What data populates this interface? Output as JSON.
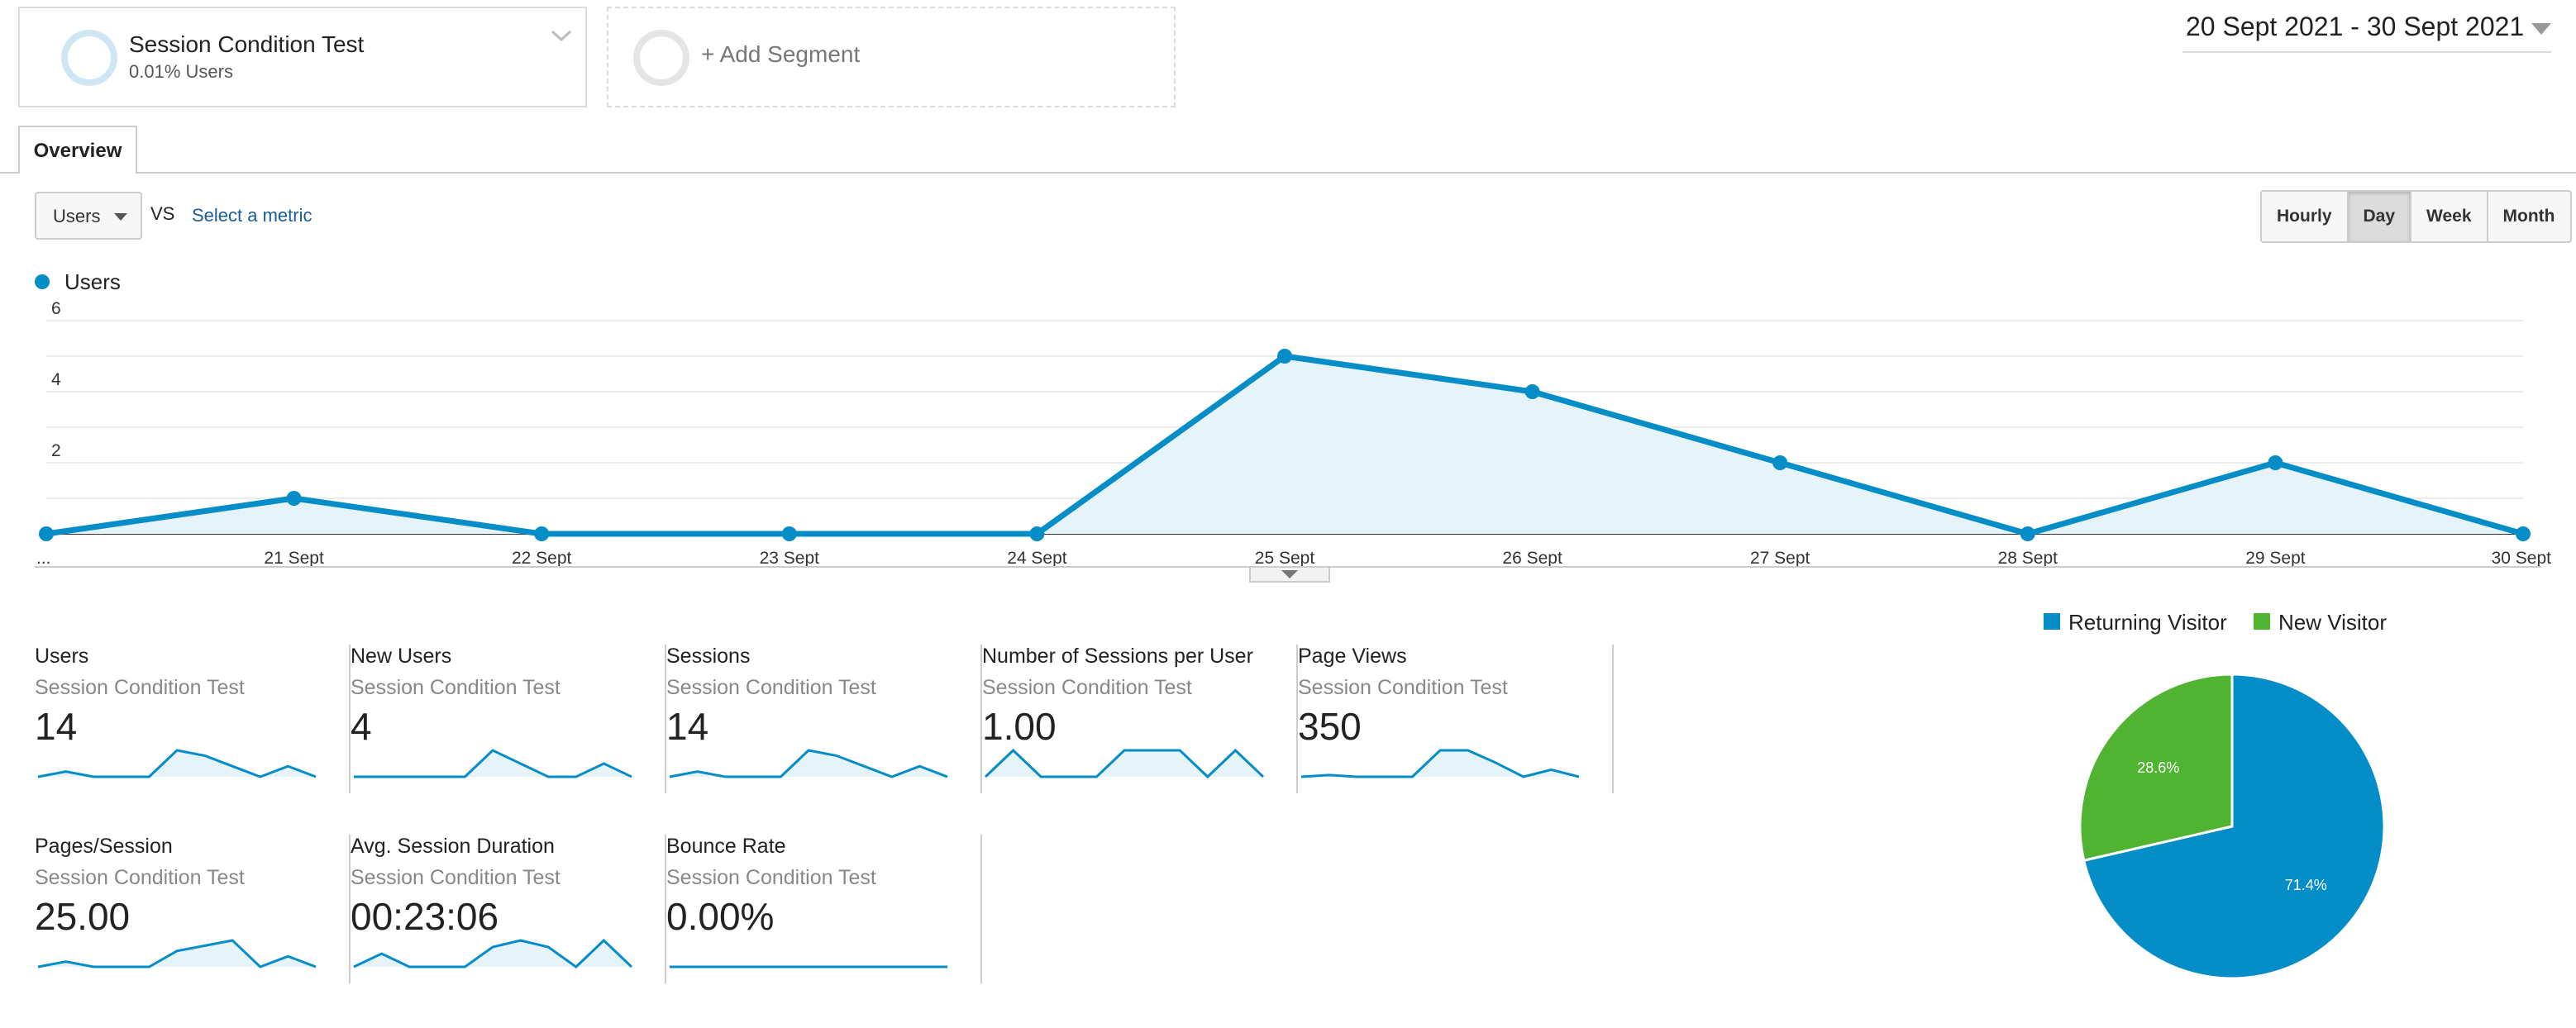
{
  "segment": {
    "name": "Session Condition Test",
    "share": "0.01% Users"
  },
  "add_segment_label": "+ Add Segment",
  "date_range": "20 Sept 2021 - 30 Sept 2021",
  "tabs": [
    {
      "label": "Overview"
    }
  ],
  "metric_selector": {
    "value": "Users",
    "vs": "VS",
    "secondary": "Select a metric"
  },
  "granularity": {
    "options": [
      "Hourly",
      "Day",
      "Week",
      "Month"
    ],
    "active": "Day"
  },
  "colors": {
    "series": "#058dc7",
    "new_visitor": "#50b432",
    "area_fill": "#e6f3f9"
  },
  "chart_data": {
    "type": "line",
    "legend": [
      "Users"
    ],
    "x": [
      "...",
      "21 Sept",
      "22 Sept",
      "23 Sept",
      "24 Sept",
      "25 Sept",
      "26 Sept",
      "27 Sept",
      "28 Sept",
      "29 Sept",
      "30 Sept"
    ],
    "series": [
      {
        "name": "Users",
        "values": [
          0,
          1,
          0,
          0,
          0,
          5,
          4,
          2,
          0,
          2,
          0
        ]
      }
    ],
    "yticks": [
      "2",
      "4",
      "6"
    ],
    "ylim": [
      0,
      6
    ],
    "grid": true
  },
  "scorecards": [
    {
      "title": "Users",
      "segment": "Session Condition Test",
      "value": "14",
      "spark": [
        0,
        1,
        0,
        0,
        0,
        5,
        4,
        2,
        0,
        2,
        0
      ]
    },
    {
      "title": "New Users",
      "segment": "Session Condition Test",
      "value": "4",
      "spark": [
        0,
        0,
        0,
        0,
        0,
        2,
        1,
        0,
        0,
        1,
        0
      ]
    },
    {
      "title": "Sessions",
      "segment": "Session Condition Test",
      "value": "14",
      "spark": [
        0,
        1,
        0,
        0,
        0,
        5,
        4,
        2,
        0,
        2,
        0
      ]
    },
    {
      "title": "Number of Sessions per User",
      "segment": "Session Condition Test",
      "value": "1.00",
      "spark": [
        0,
        1,
        0,
        0,
        0,
        1,
        1,
        1,
        0,
        1,
        0
      ]
    },
    {
      "title": "Page Views",
      "segment": "Session Condition Test",
      "value": "350",
      "spark": [
        0,
        1,
        0,
        0,
        0,
        15,
        15,
        8,
        0,
        4,
        0
      ]
    },
    {
      "title": "Pages/Session",
      "segment": "Session Condition Test",
      "value": "25.00",
      "spark": [
        0,
        1,
        0,
        0,
        0,
        3,
        4,
        5,
        0,
        2,
        0
      ]
    },
    {
      "title": "Avg. Session Duration",
      "segment": "Session Condition Test",
      "value": "00:23:06",
      "spark": [
        0,
        2,
        0,
        0,
        0,
        3,
        4,
        3,
        0,
        4,
        0
      ]
    },
    {
      "title": "Bounce Rate",
      "segment": "Session Condition Test",
      "value": "0.00%",
      "spark": [
        0,
        0,
        0,
        0,
        0,
        0,
        0,
        0,
        0,
        0,
        0
      ]
    }
  ],
  "pie": {
    "type": "pie",
    "legend": [
      {
        "label": "Returning Visitor",
        "color": "#058dc7"
      },
      {
        "label": "New Visitor",
        "color": "#50b432"
      }
    ],
    "slices": [
      {
        "label": "Returning Visitor",
        "value": 71.4,
        "text": "71.4%"
      },
      {
        "label": "New Visitor",
        "value": 28.6,
        "text": "28.6%"
      }
    ]
  }
}
